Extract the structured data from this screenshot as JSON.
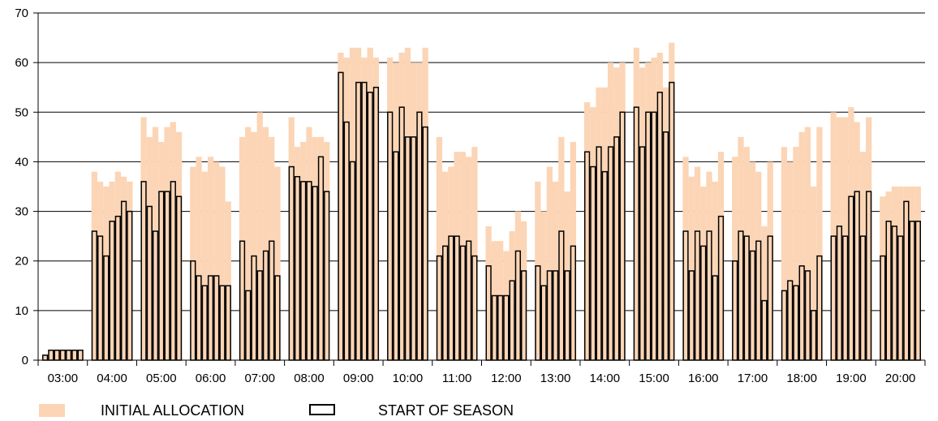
{
  "colors": {
    "initial": "#FBD5B5",
    "start_outline": "#000000",
    "axis": "#000000",
    "grid": "#000000"
  },
  "chart_data": {
    "type": "bar",
    "title": "",
    "xlabel": "",
    "ylabel": "",
    "ylim": [
      0,
      70
    ],
    "yticks": [
      "0",
      "10",
      "20",
      "30",
      "40",
      "50",
      "60",
      "70"
    ],
    "grid": true,
    "legend_position": "bottom",
    "categories": [
      "03:00",
      "04:00",
      "05:00",
      "06:00",
      "07:00",
      "08:00",
      "09:00",
      "10:00",
      "11:00",
      "12:00",
      "13:00",
      "14:00",
      "15:00",
      "16:00",
      "17:00",
      "18:00",
      "19:00",
      "20:00"
    ],
    "series": [
      {
        "name": "INITIAL ALLOCATION",
        "values": [
          [
            1,
            2,
            2,
            2,
            2,
            2,
            2
          ],
          [
            38,
            36,
            35,
            36,
            38,
            37,
            36
          ],
          [
            49,
            45,
            47,
            44,
            47,
            48,
            46
          ],
          [
            39,
            41,
            38,
            41,
            40,
            39,
            32
          ],
          [
            45,
            47,
            46,
            50,
            47,
            45,
            39
          ],
          [
            49,
            43,
            44,
            47,
            45,
            45,
            44
          ],
          [
            62,
            61,
            63,
            63,
            61,
            63,
            61
          ],
          [
            61,
            60,
            62,
            63,
            60,
            60,
            63
          ],
          [
            45,
            38,
            39,
            42,
            42,
            41,
            43
          ],
          [
            27,
            24,
            24,
            22,
            26,
            30,
            28
          ],
          [
            36,
            30,
            39,
            36,
            45,
            34,
            44
          ],
          [
            52,
            51,
            55,
            55,
            60,
            59,
            60
          ],
          [
            63,
            59,
            60,
            61,
            62,
            55,
            64
          ],
          [
            41,
            37,
            39,
            35,
            38,
            36,
            42
          ],
          [
            41,
            45,
            43,
            40,
            38,
            27,
            40
          ],
          [
            43,
            40,
            43,
            46,
            47,
            35,
            47
          ],
          [
            50,
            49,
            49,
            51,
            48,
            42,
            49
          ],
          [
            33,
            34,
            35,
            35,
            35,
            35,
            35
          ]
        ]
      },
      {
        "name": "START OF SEASON",
        "values": [
          [
            1,
            2,
            2,
            2,
            2,
            2,
            2
          ],
          [
            26,
            25,
            21,
            28,
            29,
            32,
            30
          ],
          [
            36,
            31,
            26,
            34,
            34,
            36,
            33
          ],
          [
            20,
            17,
            15,
            17,
            17,
            15,
            15
          ],
          [
            24,
            14,
            21,
            18,
            22,
            24,
            17
          ],
          [
            39,
            37,
            36,
            36,
            35,
            41,
            34
          ],
          [
            58,
            48,
            40,
            56,
            56,
            54,
            55
          ],
          [
            50,
            42,
            51,
            45,
            45,
            50,
            47
          ],
          [
            21,
            23,
            25,
            25,
            23,
            24,
            21
          ],
          [
            19,
            13,
            13,
            13,
            16,
            22,
            18
          ],
          [
            19,
            15,
            18,
            18,
            26,
            18,
            23
          ],
          [
            42,
            39,
            43,
            38,
            43,
            45,
            50
          ],
          [
            51,
            43,
            50,
            50,
            54,
            46,
            56
          ],
          [
            26,
            18,
            26,
            23,
            26,
            17,
            29
          ],
          [
            20,
            26,
            25,
            22,
            24,
            12,
            25
          ],
          [
            14,
            16,
            15,
            19,
            18,
            10,
            21
          ],
          [
            25,
            27,
            25,
            33,
            34,
            25,
            34
          ],
          [
            21,
            28,
            27,
            25,
            32,
            28,
            28
          ]
        ]
      }
    ]
  },
  "legend": {
    "initial_label": "INITIAL ALLOCATION",
    "start_label": "START OF SEASON"
  }
}
